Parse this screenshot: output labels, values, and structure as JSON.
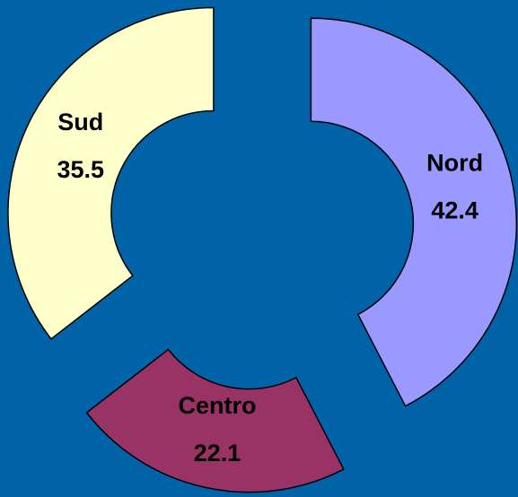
{
  "chart_data": {
    "type": "donut",
    "categories": [
      "Nord",
      "Centro",
      "Sud"
    ],
    "values": [
      42.4,
      22.1,
      35.5
    ],
    "colors": [
      "#9999ff",
      "#993366",
      "#ffffcc"
    ],
    "exploded": true
  }
}
